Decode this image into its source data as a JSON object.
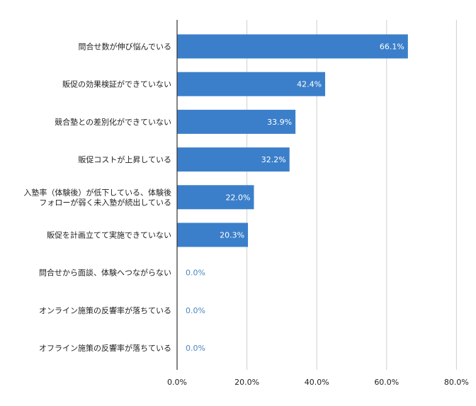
{
  "chart_data": {
    "type": "bar",
    "orientation": "horizontal",
    "categories": [
      [
        "問合せ数が伸び悩んでいる"
      ],
      [
        "販促の効果検証ができていない"
      ],
      [
        "競合塾との差別化ができていない"
      ],
      [
        "販促コストが上昇している"
      ],
      [
        "入塾率（体験後）が低下している、体験後",
        "フォローが弱く未入塾が続出している"
      ],
      [
        "販促を計画立てて実施できていない"
      ],
      [
        "問合せから面談、体験へつながらない"
      ],
      [
        "オンライン施策の反響率が落ちている"
      ],
      [
        "オフライン施策の反響率が落ちている"
      ]
    ],
    "values": [
      66.1,
      42.4,
      33.9,
      32.2,
      22.0,
      20.3,
      0.0,
      0.0,
      0.0
    ],
    "value_labels": [
      "66.1%",
      "42.4%",
      "33.9%",
      "32.2%",
      "22.0%",
      "20.3%",
      "0.0%",
      "0.0%",
      "0.0%"
    ],
    "x_ticks": [
      0,
      20,
      40,
      60,
      80
    ],
    "x_tick_labels": [
      "0.0%",
      "20.0%",
      "40.0%",
      "60.0%",
      "80.0%"
    ],
    "xlim": [
      0,
      80
    ],
    "grid": true,
    "legend": "none",
    "bar_color": "#3b7fca",
    "outside_label_color": "#4a86c5"
  }
}
